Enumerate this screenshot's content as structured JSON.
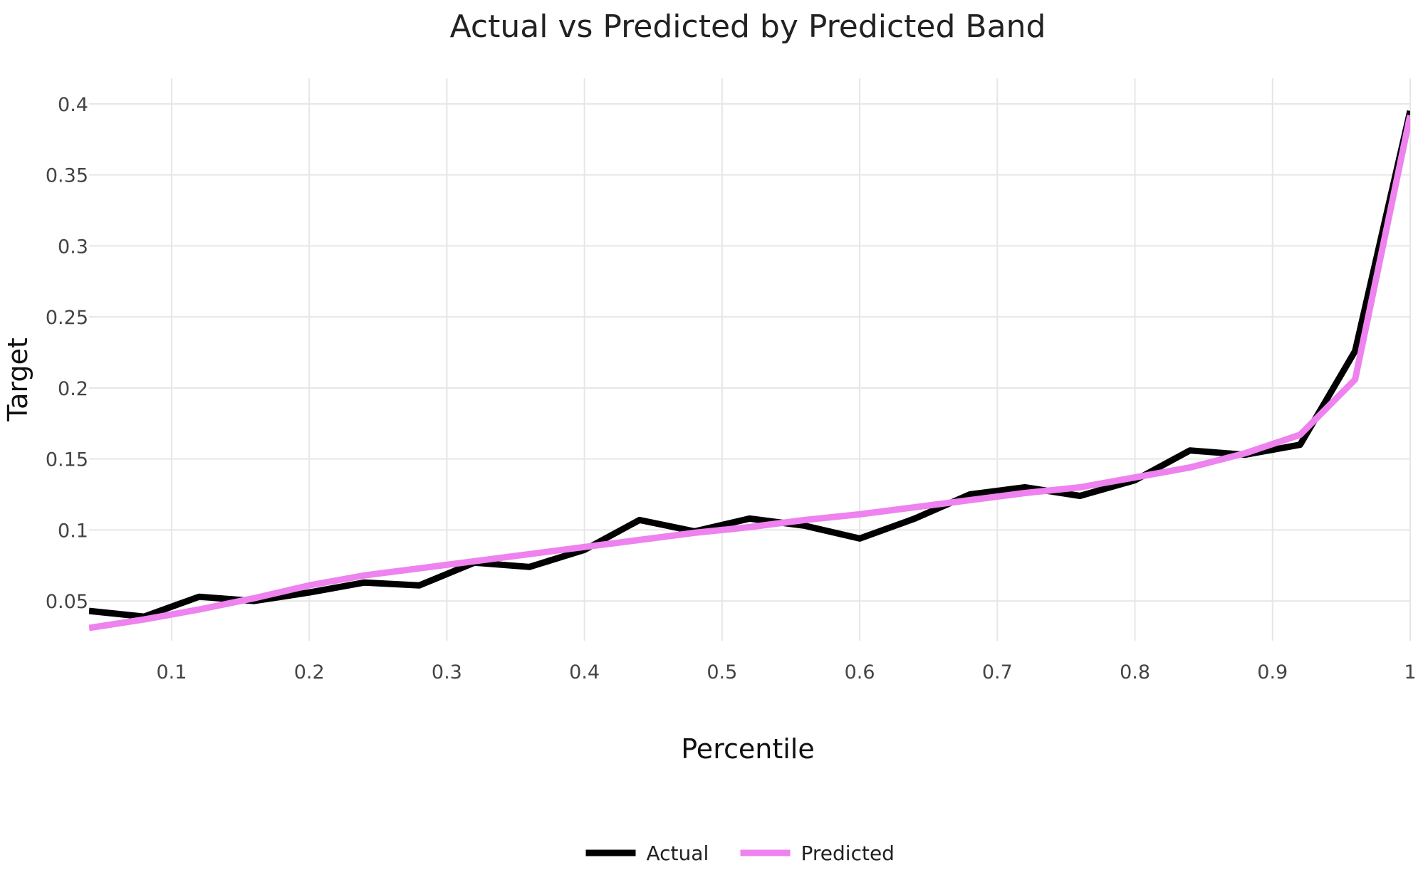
{
  "chart_data": {
    "type": "line",
    "title": "Actual vs Predicted by Predicted Band",
    "xlabel": "Percentile",
    "ylabel": "Target",
    "xlim": [
      0.04,
      1.0
    ],
    "ylim": [
      0.022,
      0.418
    ],
    "xticks": [
      0.1,
      0.2,
      0.3,
      0.4,
      0.5,
      0.6,
      0.7,
      0.8,
      0.9,
      1.0
    ],
    "xtick_labels": [
      "0.1",
      "0.2",
      "0.3",
      "0.4",
      "0.5",
      "0.6",
      "0.7",
      "0.8",
      "0.9",
      "1"
    ],
    "yticks": [
      0.05,
      0.1,
      0.15,
      0.2,
      0.25,
      0.3,
      0.35,
      0.4
    ],
    "ytick_labels": [
      "0.05",
      "0.1",
      "0.15",
      "0.2",
      "0.25",
      "0.3",
      "0.35",
      "0.4"
    ],
    "grid": true,
    "legend_position": "bottom-center",
    "x": [
      0.04,
      0.08,
      0.12,
      0.16,
      0.2,
      0.24,
      0.28,
      0.32,
      0.36,
      0.4,
      0.44,
      0.48,
      0.52,
      0.56,
      0.6,
      0.64,
      0.68,
      0.72,
      0.76,
      0.8,
      0.84,
      0.88,
      0.92,
      0.96,
      1.0
    ],
    "series": [
      {
        "name": "Actual",
        "color": "#000000",
        "values": [
          0.043,
          0.039,
          0.053,
          0.05,
          0.056,
          0.063,
          0.061,
          0.077,
          0.074,
          0.086,
          0.107,
          0.099,
          0.108,
          0.103,
          0.094,
          0.108,
          0.125,
          0.13,
          0.124,
          0.135,
          0.156,
          0.153,
          0.16,
          0.226,
          0.395
        ]
      },
      {
        "name": "Predicted",
        "color": "#ee82ee",
        "values": [
          0.031,
          0.037,
          0.044,
          0.052,
          0.061,
          0.068,
          0.073,
          0.078,
          0.083,
          0.088,
          0.093,
          0.098,
          0.102,
          0.107,
          0.111,
          0.116,
          0.121,
          0.126,
          0.13,
          0.137,
          0.144,
          0.154,
          0.167,
          0.206,
          0.392
        ]
      }
    ]
  }
}
